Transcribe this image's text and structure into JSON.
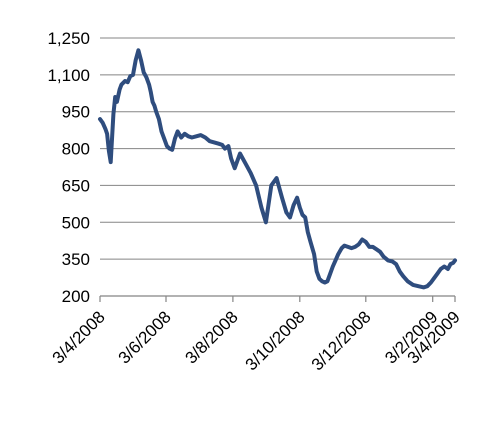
{
  "chart_data": {
    "type": "line",
    "title": "",
    "xlabel": "",
    "ylabel": "",
    "ylim": [
      200,
      1250
    ],
    "yticks": [
      "1,250",
      "1,100",
      "950",
      "800",
      "650",
      "500",
      "350",
      "200"
    ],
    "ytick_values": [
      1250,
      1100,
      950,
      800,
      650,
      500,
      350,
      200
    ],
    "xlim": [
      "2008-03-04",
      "2009-04-06"
    ],
    "xticks": [
      "3/4/2008",
      "3/6/2008",
      "3/8/2008",
      "3/10/2008",
      "3/12/2008",
      "3/2/2009",
      "3/4/2009"
    ],
    "xtick_dates": [
      "2008-03-04",
      "2008-05-17",
      "2008-07-31",
      "2008-10-14",
      "2008-12-27",
      "2009-03-12",
      "2009-04-06"
    ],
    "grid": "horizontal",
    "legend": "none",
    "line_color": "#2f4d7e",
    "series": [
      {
        "x": [
          "2008-03-04",
          "2008-03-07",
          "2008-03-10",
          "2008-03-12",
          "2008-03-14",
          "2008-03-16",
          "2008-03-19",
          "2008-03-21",
          "2008-03-23",
          "2008-03-26",
          "2008-03-28",
          "2008-04-01",
          "2008-04-04",
          "2008-04-07",
          "2008-04-10",
          "2008-04-13",
          "2008-04-16",
          "2008-04-19",
          "2008-04-22",
          "2008-04-25",
          "2008-04-28",
          "2008-04-30",
          "2008-05-02",
          "2008-05-04",
          "2008-05-06",
          "2008-05-09",
          "2008-05-12",
          "2008-05-15",
          "2008-05-18",
          "2008-05-21",
          "2008-05-24",
          "2008-05-27",
          "2008-05-30",
          "2008-06-03",
          "2008-06-07",
          "2008-06-11",
          "2008-06-15",
          "2008-06-20",
          "2008-06-25",
          "2008-06-30",
          "2008-07-05",
          "2008-07-10",
          "2008-07-15",
          "2008-07-19",
          "2008-07-22",
          "2008-07-26",
          "2008-07-29",
          "2008-08-02",
          "2008-08-08",
          "2008-08-14",
          "2008-08-20",
          "2008-08-26",
          "2008-09-01",
          "2008-09-06",
          "2008-09-12",
          "2008-09-18",
          "2008-09-24",
          "2008-09-29",
          "2008-10-03",
          "2008-10-07",
          "2008-10-11",
          "2008-10-14",
          "2008-10-17",
          "2008-10-20",
          "2008-10-23",
          "2008-10-26",
          "2008-10-30",
          "2008-11-02",
          "2008-11-05",
          "2008-11-08",
          "2008-11-11",
          "2008-11-14",
          "2008-11-17",
          "2008-11-20",
          "2008-11-23",
          "2008-11-26",
          "2008-11-30",
          "2008-12-03",
          "2008-12-07",
          "2008-12-11",
          "2008-12-15",
          "2008-12-19",
          "2008-12-23",
          "2008-12-27",
          "2008-12-31",
          "2009-01-04",
          "2009-01-08",
          "2009-01-12",
          "2009-01-16",
          "2009-01-21",
          "2009-01-26",
          "2009-01-30",
          "2009-02-03",
          "2009-02-07",
          "2009-02-12",
          "2009-02-18",
          "2009-02-24",
          "2009-03-02",
          "2009-03-06",
          "2009-03-10",
          "2009-03-13",
          "2009-03-17",
          "2009-03-21",
          "2009-03-25",
          "2009-03-29",
          "2009-04-01",
          "2009-04-04",
          "2009-04-06"
        ],
        "values": [
          920,
          905,
          880,
          860,
          790,
          745,
          940,
          1010,
          990,
          1040,
          1060,
          1075,
          1070,
          1095,
          1100,
          1160,
          1200,
          1160,
          1110,
          1090,
          1060,
          1030,
          990,
          975,
          950,
          920,
          870,
          840,
          810,
          800,
          795,
          840,
          870,
          845,
          860,
          850,
          845,
          850,
          855,
          845,
          830,
          825,
          820,
          815,
          800,
          810,
          760,
          720,
          780,
          740,
          700,
          650,
          560,
          500,
          650,
          680,
          600,
          540,
          520,
          570,
          600,
          560,
          530,
          520,
          460,
          420,
          370,
          300,
          270,
          260,
          255,
          260,
          290,
          320,
          345,
          370,
          395,
          405,
          400,
          395,
          400,
          410,
          430,
          420,
          400,
          400,
          390,
          380,
          360,
          345,
          340,
          330,
          300,
          280,
          260,
          245,
          240,
          235,
          240,
          255,
          270,
          290,
          310,
          320,
          310,
          330,
          335,
          345
        ]
      }
    ]
  }
}
